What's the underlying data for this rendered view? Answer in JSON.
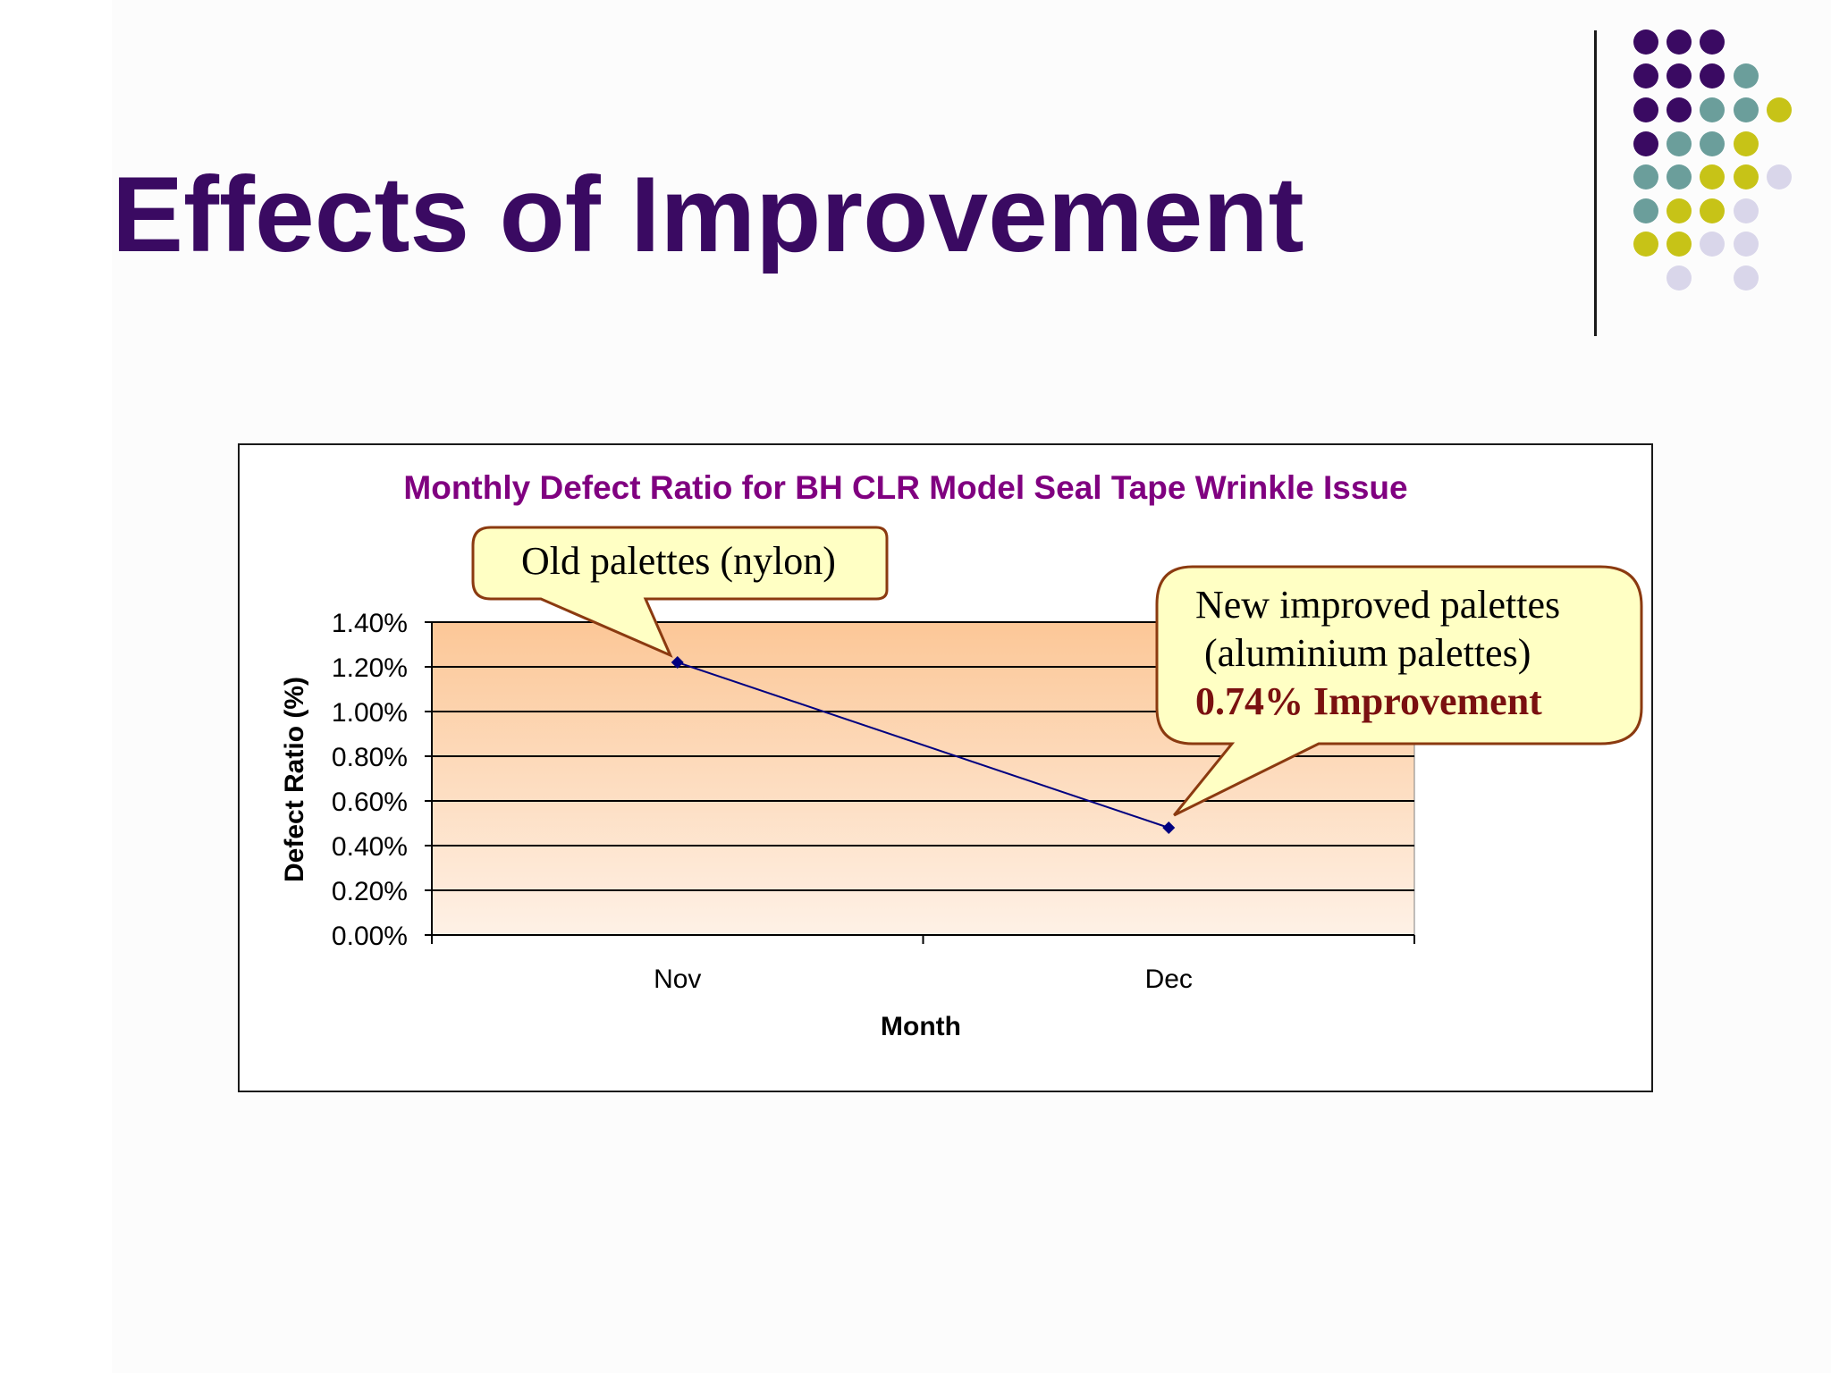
{
  "slide": {
    "title": "Effects of Improvement"
  },
  "colors": {
    "title": "#3a0a62",
    "chart_title": "#800080",
    "dot_purple": "#3a0a62",
    "dot_teal": "#6b9e9b",
    "dot_olive": "#c7c317",
    "dot_lavender": "#d9d6ea",
    "line": "#000080",
    "callout_fill": "#ffffc4",
    "callout_border": "#8b3a10",
    "emphasis": "#7a1010"
  },
  "callouts": {
    "old": "Old palettes (nylon)",
    "new_line1": "New improved palettes",
    "new_line2": "(aluminium palettes)",
    "new_line3": "0.74% Improvement"
  },
  "chart_data": {
    "type": "line",
    "title": "Monthly Defect Ratio for BH CLR Model Seal Tape Wrinkle Issue",
    "xlabel": "Month",
    "ylabel": "Defect Ratio (%)",
    "categories": [
      "Nov",
      "Dec"
    ],
    "series": [
      {
        "values": [
          1.22,
          0.48
        ]
      }
    ],
    "ylim": [
      0,
      1.4
    ],
    "ytick_labels": [
      "0.00%",
      "0.20%",
      "0.40%",
      "0.60%",
      "0.80%",
      "1.00%",
      "1.20%",
      "1.40%"
    ],
    "grid": true,
    "background": "orange gradient (darker at top, lighter at bottom)"
  }
}
